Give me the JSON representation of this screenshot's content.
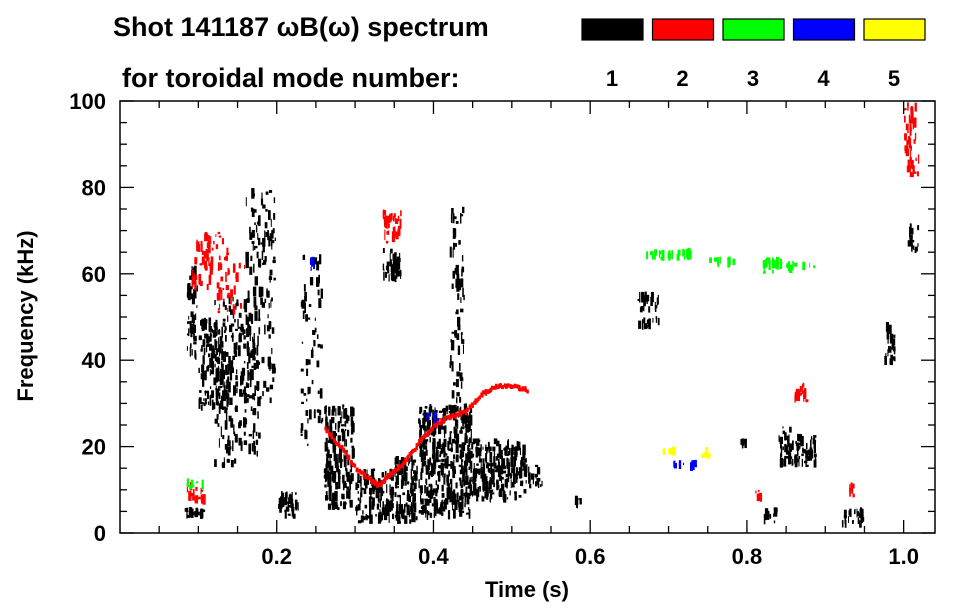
{
  "chart_data": {
    "type": "spectrogram",
    "title_line1": "Shot 141187 ωB(ω) spectrum",
    "title_line2": "for toroidal mode number:",
    "xlabel": "Time (s)",
    "ylabel": "Frequency (kHz)",
    "xlim": [
      0.0,
      1.04
    ],
    "ylim": [
      0,
      100
    ],
    "x_ticks": [
      0.2,
      0.4,
      0.6,
      0.8,
      1.0
    ],
    "x_tick_labels": [
      "0.2",
      "0.4",
      "0.6",
      "0.8",
      "1.0"
    ],
    "y_ticks": [
      0,
      20,
      40,
      60,
      80,
      100
    ],
    "y_tick_labels": [
      "0",
      "20",
      "40",
      "60",
      "80",
      "100"
    ],
    "legend": [
      {
        "label": "1",
        "color": "#000000"
      },
      {
        "label": "2",
        "color": "#ff0000"
      },
      {
        "label": "3",
        "color": "#00ff00"
      },
      {
        "label": "4",
        "color": "#0000ff"
      },
      {
        "label": "5",
        "color": "#ffff00"
      }
    ],
    "series": [
      {
        "name": "1",
        "color": "#000000",
        "blobs": [
          [
            0.085,
            0.1,
            40,
            62,
            0.7
          ],
          [
            0.1,
            0.14,
            28,
            50,
            0.55
          ],
          [
            0.08,
            0.11,
            3,
            6,
            0.9
          ],
          [
            0.12,
            0.18,
            15,
            55,
            0.35
          ],
          [
            0.16,
            0.2,
            30,
            80,
            0.25
          ],
          [
            0.2,
            0.23,
            3,
            10,
            0.8
          ],
          [
            0.23,
            0.26,
            20,
            65,
            0.2
          ],
          [
            0.26,
            0.3,
            5,
            30,
            0.75
          ],
          [
            0.3,
            0.35,
            2,
            15,
            0.7
          ],
          [
            0.335,
            0.36,
            58,
            66,
            0.85
          ],
          [
            0.35,
            0.38,
            2,
            18,
            0.8
          ],
          [
            0.38,
            0.45,
            3,
            30,
            0.85
          ],
          [
            0.42,
            0.44,
            30,
            76,
            0.3
          ],
          [
            0.44,
            0.52,
            7,
            22,
            0.8
          ],
          [
            0.52,
            0.54,
            10,
            16,
            0.6
          ],
          [
            0.66,
            0.69,
            47,
            56,
            0.5
          ],
          [
            0.82,
            0.84,
            2,
            6,
            0.7
          ],
          [
            0.84,
            0.86,
            15,
            25,
            0.75
          ],
          [
            0.86,
            0.89,
            15,
            23,
            0.85
          ],
          [
            0.92,
            0.95,
            1,
            6,
            0.7
          ],
          [
            0.975,
            0.99,
            38,
            50,
            0.5
          ],
          [
            1.005,
            1.02,
            64,
            72,
            0.6
          ],
          [
            0.58,
            0.59,
            5,
            9,
            0.4
          ],
          [
            0.79,
            0.8,
            20,
            22,
            0.5
          ]
        ]
      },
      {
        "name": "2",
        "color": "#ff0000",
        "blobs": [
          [
            0.09,
            0.12,
            56,
            70,
            0.35
          ],
          [
            0.11,
            0.14,
            60,
            70,
            0.3
          ],
          [
            0.12,
            0.16,
            50,
            63,
            0.25
          ],
          [
            0.085,
            0.11,
            6,
            12,
            0.5
          ],
          [
            0.335,
            0.36,
            67,
            75,
            0.85
          ],
          [
            0.86,
            0.88,
            30,
            35,
            0.6
          ],
          [
            1.0,
            1.02,
            82,
            100,
            0.6
          ],
          [
            0.81,
            0.82,
            7,
            10,
            0.5
          ],
          [
            0.93,
            0.94,
            8,
            12,
            0.5
          ]
        ],
        "curve": [
          [
            0.26,
            24
          ],
          [
            0.28,
            20
          ],
          [
            0.3,
            15
          ],
          [
            0.32,
            12
          ],
          [
            0.33,
            11
          ],
          [
            0.34,
            13
          ],
          [
            0.36,
            16
          ],
          [
            0.38,
            21
          ],
          [
            0.4,
            25
          ],
          [
            0.42,
            27
          ],
          [
            0.44,
            28
          ],
          [
            0.46,
            32
          ],
          [
            0.48,
            34
          ],
          [
            0.5,
            34
          ],
          [
            0.52,
            33
          ]
        ]
      },
      {
        "name": "3",
        "color": "#00ff00",
        "blobs": [
          [
            0.67,
            0.73,
            63,
            66,
            0.5
          ],
          [
            0.75,
            0.79,
            62,
            64,
            0.4
          ],
          [
            0.82,
            0.86,
            60,
            64,
            0.55
          ],
          [
            0.85,
            0.89,
            61,
            63,
            0.4
          ],
          [
            0.085,
            0.11,
            10,
            13,
            0.35
          ]
        ]
      },
      {
        "name": "4",
        "color": "#0000ff",
        "blobs": [
          [
            0.39,
            0.41,
            26,
            28,
            0.3
          ],
          [
            0.7,
            0.74,
            14,
            17,
            0.3
          ],
          [
            0.24,
            0.25,
            60,
            64,
            0.25
          ]
        ]
      },
      {
        "name": "5",
        "color": "#ffff00",
        "blobs": [
          [
            0.69,
            0.71,
            18,
            20,
            0.4
          ],
          [
            0.74,
            0.76,
            17,
            20,
            0.4
          ]
        ]
      }
    ]
  }
}
